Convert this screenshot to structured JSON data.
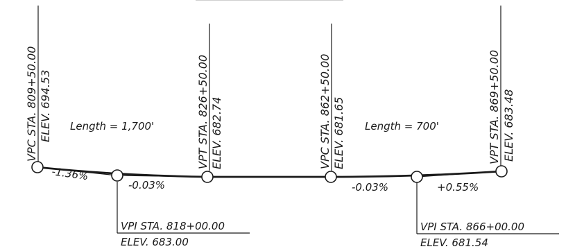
{
  "colors": {
    "line": "#1a1a1a",
    "background": "#ffffff"
  },
  "curves": [
    {
      "length_label": "Length = 1,700'"
    },
    {
      "length_label": "Length = 700'"
    }
  ],
  "points": [
    {
      "id": "vpc1",
      "type": "VPC",
      "station": "VPC STA. 809+50.00",
      "elevation": "ELEV. 694.53"
    },
    {
      "id": "vpi1",
      "type": "VPI",
      "station": "VPI STA. 818+00.00",
      "elevation": "ELEV. 683.00"
    },
    {
      "id": "vpt1",
      "type": "VPT",
      "station": "VPT STA. 826+50.00",
      "elevation": "ELEV. 682.74"
    },
    {
      "id": "vpc2",
      "type": "VPC",
      "station": "VPC STA. 862+50.00",
      "elevation": "ELEV. 681.65"
    },
    {
      "id": "vpi2",
      "type": "VPI",
      "station": "VPI STA. 866+00.00",
      "elevation": "ELEV. 681.54"
    },
    {
      "id": "vpt2",
      "type": "VPT",
      "station": "VPT STA. 869+50.00",
      "elevation": "ELEV. 683.48"
    }
  ],
  "grades": [
    "-1.36%",
    "-0.03%",
    "-0.03%",
    "+0.55%"
  ]
}
